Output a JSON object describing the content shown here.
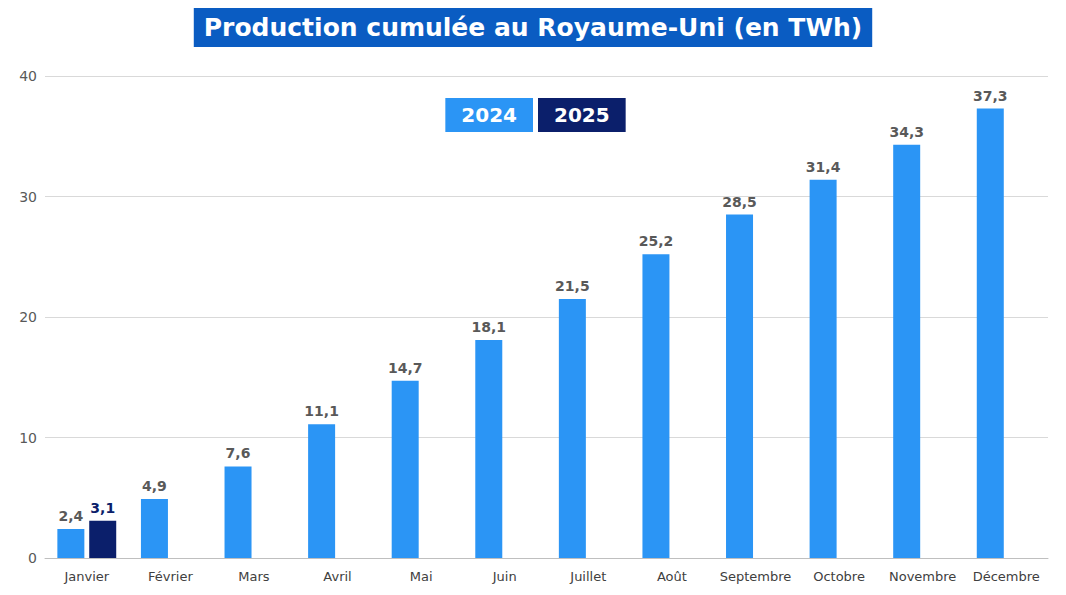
{
  "chart_data": {
    "type": "bar",
    "title": "Production cumulée au Royaume-Uni (en TWh)",
    "categories": [
      "Janvier",
      "Février",
      "Mars",
      "Avril",
      "Mai",
      "Juin",
      "Juillet",
      "Août",
      "Septembre",
      "Octobre",
      "Novembre",
      "Décembre"
    ],
    "series": [
      {
        "name": "2024",
        "color": "#2b95f5",
        "values": [
          2.4,
          4.9,
          7.6,
          11.1,
          14.7,
          18.1,
          21.5,
          25.2,
          28.5,
          31.4,
          34.3,
          37.3
        ],
        "value_labels": [
          "2,4",
          "4,9",
          "7,6",
          "11,1",
          "14,7",
          "18,1",
          "21,5",
          "25,2",
          "28,5",
          "31,4",
          "34,3",
          "37,3"
        ]
      },
      {
        "name": "2025",
        "color": "#0b1f6b",
        "values": [
          3.1,
          null,
          null,
          null,
          null,
          null,
          null,
          null,
          null,
          null,
          null,
          null
        ],
        "value_labels": [
          "3,1",
          null,
          null,
          null,
          null,
          null,
          null,
          null,
          null,
          null,
          null,
          null
        ]
      }
    ],
    "ylim": [
      0,
      40
    ],
    "yticks": [
      0,
      10,
      20,
      30,
      40
    ],
    "grid": true,
    "legend": "top",
    "data_labels": true
  }
}
